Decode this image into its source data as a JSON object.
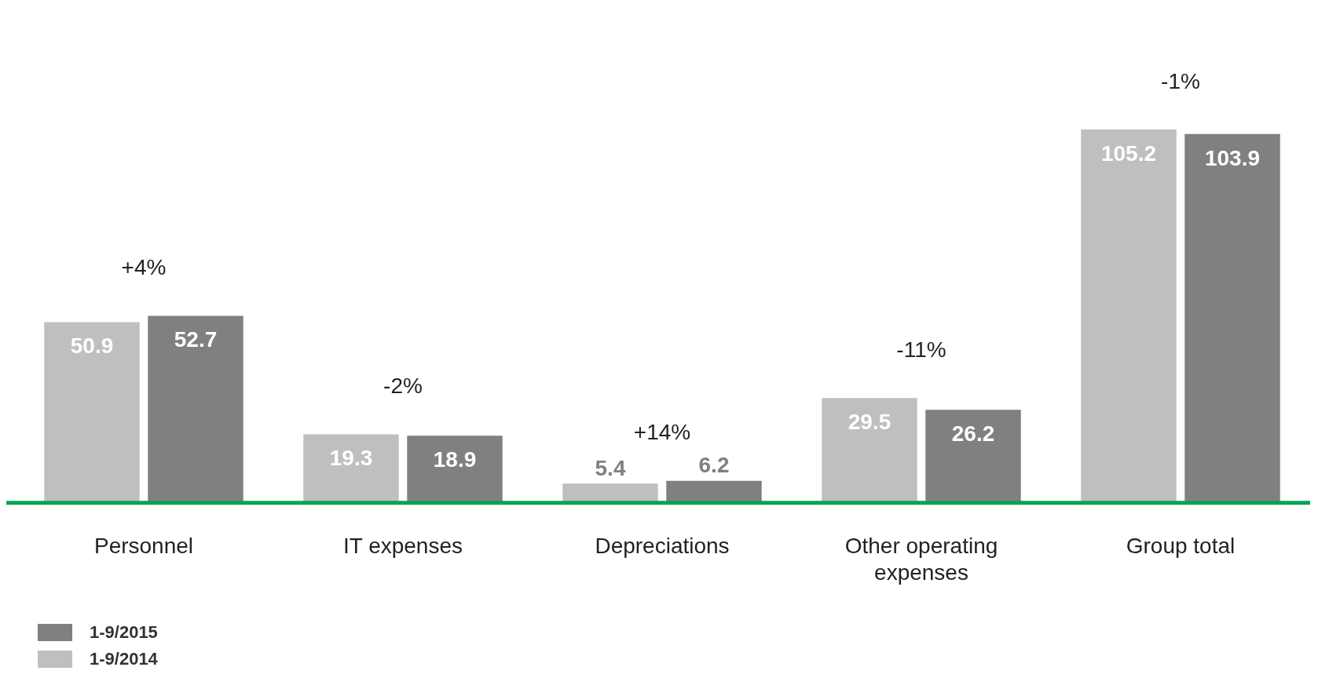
{
  "chart_data": {
    "type": "bar",
    "categories": [
      "Personnel",
      "IT expenses",
      "Depreciations",
      "Other operating expenses",
      "Group total"
    ],
    "series": [
      {
        "name": "1-9/2014",
        "color": "#bfbfbf",
        "values": [
          50.9,
          19.3,
          5.4,
          29.5,
          105.2
        ]
      },
      {
        "name": "1-9/2015",
        "color": "#808080",
        "values": [
          52.7,
          18.9,
          6.2,
          26.2,
          103.9
        ]
      }
    ],
    "tick_labels": "x",
    "data_labels": true,
    "grid": false,
    "legend": "bottom left",
    "annotations": [
      "+4%",
      "-2%",
      "+14%",
      "-11%",
      "-1%"
    ]
  }
}
